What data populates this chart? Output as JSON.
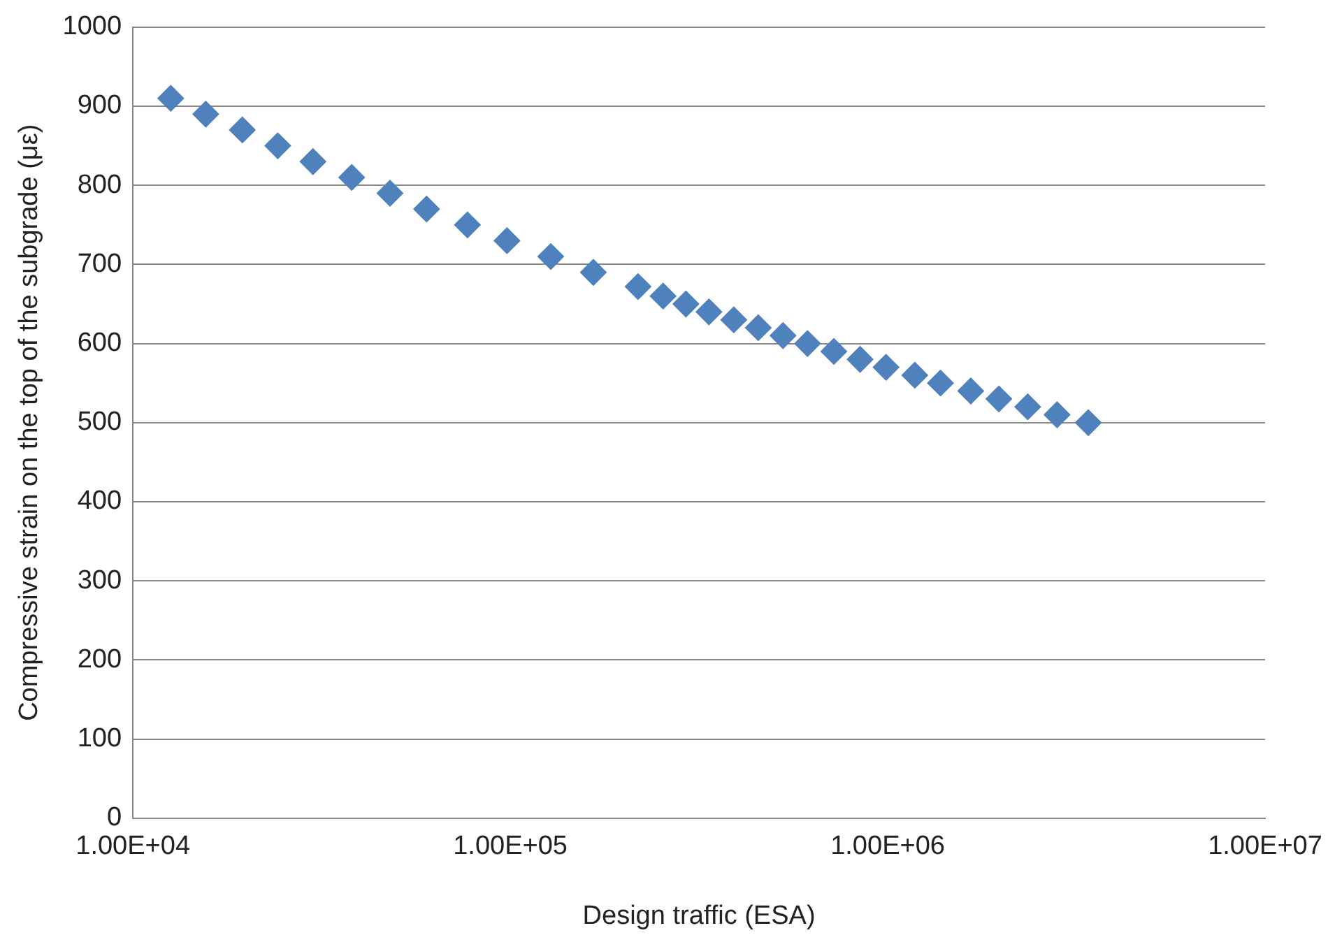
{
  "chart_data": {
    "type": "scatter",
    "xlabel": "Design traffic (ESA)",
    "ylabel": "Compressive strain on the top of the subgrade (με)",
    "x": [
      12600,
      15600,
      19500,
      24200,
      30000,
      38000,
      48000,
      60000,
      77000,
      98000,
      128000,
      166000,
      218000,
      254000,
      292000,
      336000,
      391000,
      454000,
      528000,
      613000,
      720000,
      845000,
      990000,
      1180000,
      1380000,
      1660000,
      1970000,
      2350000,
      2810000,
      3400000
    ],
    "series": [
      {
        "color": "#4f81bd",
        "values": [
          910,
          890,
          870,
          850,
          830,
          810,
          790,
          770,
          750,
          730,
          710,
          690,
          672,
          660,
          650,
          640,
          630,
          620,
          610,
          600,
          590,
          580,
          570,
          560,
          550,
          540,
          530,
          520,
          510,
          500
        ]
      }
    ],
    "xlim": [
      10000,
      10000000
    ],
    "xticks": [
      {
        "value": 10000,
        "label": "1.00E+04"
      },
      {
        "value": 100000,
        "label": "1.00E+05"
      },
      {
        "value": 1000000,
        "label": "1.00E+06"
      },
      {
        "value": 10000000,
        "label": "1.00E+07"
      }
    ],
    "ylim": [
      0,
      1000
    ],
    "yticks": [
      0,
      100,
      200,
      300,
      400,
      500,
      600,
      700,
      800,
      900,
      1000
    ],
    "log": "x",
    "grid": "y",
    "marker": "diamond",
    "legend": false
  }
}
